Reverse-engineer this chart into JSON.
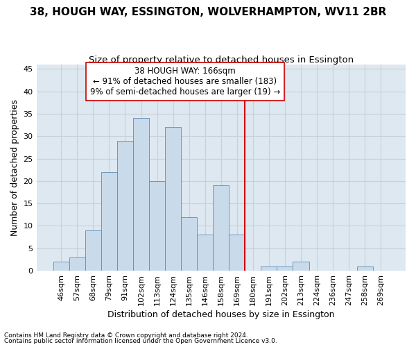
{
  "title": "38, HOUGH WAY, ESSINGTON, WOLVERHAMPTON, WV11 2BR",
  "subtitle": "Size of property relative to detached houses in Essington",
  "xlabel": "Distribution of detached houses by size in Essington",
  "ylabel": "Number of detached properties",
  "footnote1": "Contains HM Land Registry data © Crown copyright and database right 2024.",
  "footnote2": "Contains public sector information licensed under the Open Government Licence v3.0.",
  "bar_labels": [
    "46sqm",
    "57sqm",
    "68sqm",
    "79sqm",
    "91sqm",
    "102sqm",
    "113sqm",
    "124sqm",
    "135sqm",
    "146sqm",
    "158sqm",
    "169sqm",
    "180sqm",
    "191sqm",
    "202sqm",
    "213sqm",
    "224sqm",
    "236sqm",
    "247sqm",
    "258sqm",
    "269sqm"
  ],
  "bar_heights": [
    2,
    3,
    9,
    22,
    29,
    34,
    20,
    32,
    12,
    8,
    19,
    8,
    0,
    1,
    1,
    2,
    0,
    0,
    0,
    1,
    0
  ],
  "bar_color": "#c9daea",
  "bar_edge_color": "#5b8db8",
  "annotation_text": "38 HOUGH WAY: 166sqm\n← 91% of detached houses are smaller (183)\n9% of semi-detached houses are larger (19) →",
  "vline_x": 11.5,
  "vline_color": "#cc0000",
  "ylim": [
    0,
    46
  ],
  "yticks": [
    0,
    5,
    10,
    15,
    20,
    25,
    30,
    35,
    40,
    45
  ],
  "grid_color": "#c8d0d8",
  "bg_color": "#dde8f0",
  "fig_color": "#ffffff",
  "title_fontsize": 11,
  "subtitle_fontsize": 9.5,
  "label_fontsize": 9,
  "tick_fontsize": 8,
  "annot_fontsize": 8.5
}
